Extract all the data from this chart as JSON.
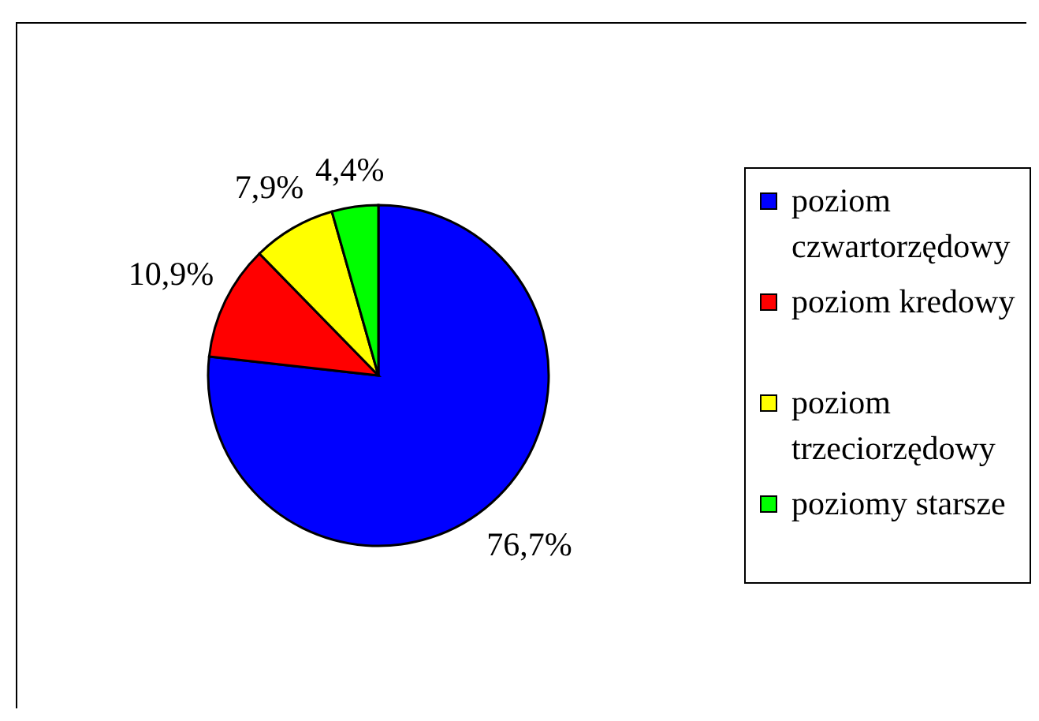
{
  "chart_data": {
    "type": "pie",
    "categories": [
      "poziom czwartorzędowy",
      "poziom kredowy",
      "poziom trzeciorzędowy",
      "poziomy starsze"
    ],
    "values": [
      76.7,
      10.9,
      7.9,
      4.4
    ],
    "colors": [
      "#0000ff",
      "#ff0000",
      "#ffff00",
      "#00ff00"
    ],
    "value_labels": [
      "76,7%",
      "10,9%",
      "7,9%",
      "4,4%"
    ],
    "legend": "right"
  }
}
